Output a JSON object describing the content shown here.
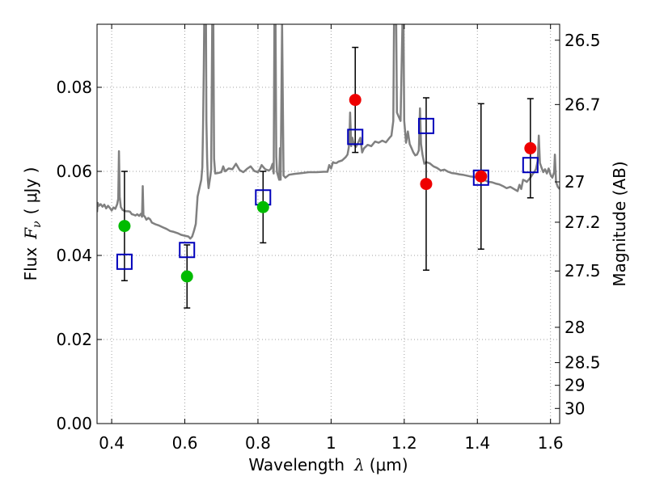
{
  "chart_data": {
    "type": "scatter",
    "xlabel": {
      "main": "Wavelength",
      "symbol": "λ",
      "unit": "(μm)"
    },
    "ylabel": {
      "main": "Flux",
      "symbol": "F",
      "sub": "ν",
      "unit": "( μJy )"
    },
    "ylabel_right": "Magnitude (AB)",
    "xlim": [
      0.36,
      1.625
    ],
    "ylim": [
      0.0,
      0.095
    ],
    "grid": true,
    "x_ticks": [
      0.4,
      0.6,
      0.8,
      1.0,
      1.2,
      1.4,
      1.6
    ],
    "x_tick_labels": [
      "0.4",
      "0.6",
      "0.8",
      "1",
      "1.2",
      "1.4",
      "1.6"
    ],
    "y_ticks": [
      0.0,
      0.02,
      0.04,
      0.06,
      0.08
    ],
    "y_tick_labels": [
      "0.00",
      "0.02",
      "0.04",
      "0.06",
      "0.08"
    ],
    "mag_ticks": [
      {
        "label": "26.5",
        "flux": 0.0912
      },
      {
        "label": "26.7",
        "flux": 0.0759
      },
      {
        "label": "27",
        "flux": 0.0575
      },
      {
        "label": "27.2",
        "flux": 0.0479
      },
      {
        "label": "27.5",
        "flux": 0.0363
      },
      {
        "label": "28",
        "flux": 0.0229
      },
      {
        "label": "28.5",
        "flux": 0.0145
      },
      {
        "label": "29",
        "flux": 0.0091
      },
      {
        "label": "30",
        "flux": 0.0036
      }
    ],
    "colors": {
      "spectrum": "#808080",
      "model": "#0000bb",
      "green": "#00bb00",
      "red": "#ee0000",
      "error": "#000000",
      "grid": "#a0a0a0"
    },
    "measured_points": [
      {
        "x": 0.435,
        "y": 0.047,
        "err": 0.013,
        "color": "green"
      },
      {
        "x": 0.606,
        "y": 0.035,
        "err": 0.0075,
        "color": "green"
      },
      {
        "x": 0.814,
        "y": 0.0515,
        "err": 0.0085,
        "color": "green"
      },
      {
        "x": 1.066,
        "y": 0.077,
        "err": 0.0125,
        "color": "red"
      },
      {
        "x": 1.26,
        "y": 0.057,
        "err": 0.0205,
        "color": "red"
      },
      {
        "x": 1.41,
        "y": 0.0588,
        "err": 0.0173,
        "color": "red"
      },
      {
        "x": 1.545,
        "y": 0.0655,
        "err": 0.0118,
        "color": "red"
      }
    ],
    "model_points": [
      {
        "x": 0.435,
        "y": 0.0385
      },
      {
        "x": 0.606,
        "y": 0.0413
      },
      {
        "x": 0.814,
        "y": 0.0538
      },
      {
        "x": 1.066,
        "y": 0.0682
      },
      {
        "x": 1.26,
        "y": 0.0708
      },
      {
        "x": 1.41,
        "y": 0.0585
      },
      {
        "x": 1.545,
        "y": 0.0615
      }
    ],
    "spectrum": [
      [
        0.36,
        0.0503
      ],
      [
        0.362,
        0.0525
      ],
      [
        0.365,
        0.0518
      ],
      [
        0.37,
        0.0522
      ],
      [
        0.375,
        0.0516
      ],
      [
        0.38,
        0.0521
      ],
      [
        0.385,
        0.0512
      ],
      [
        0.39,
        0.0518
      ],
      [
        0.395,
        0.0513
      ],
      [
        0.4,
        0.0507
      ],
      [
        0.405,
        0.0514
      ],
      [
        0.41,
        0.0511
      ],
      [
        0.415,
        0.0522
      ],
      [
        0.418,
        0.0535
      ],
      [
        0.42,
        0.0648
      ],
      [
        0.422,
        0.054
      ],
      [
        0.425,
        0.0515
      ],
      [
        0.43,
        0.0508
      ],
      [
        0.435,
        0.0506
      ],
      [
        0.44,
        0.0505
      ],
      [
        0.445,
        0.0505
      ],
      [
        0.45,
        0.0504
      ],
      [
        0.455,
        0.0498
      ],
      [
        0.46,
        0.0497
      ],
      [
        0.465,
        0.0495
      ],
      [
        0.47,
        0.0498
      ],
      [
        0.475,
        0.0494
      ],
      [
        0.48,
        0.0499
      ],
      [
        0.483,
        0.0492
      ],
      [
        0.485,
        0.0565
      ],
      [
        0.487,
        0.0495
      ],
      [
        0.49,
        0.0493
      ],
      [
        0.495,
        0.0485
      ],
      [
        0.5,
        0.0489
      ],
      [
        0.505,
        0.0486
      ],
      [
        0.51,
        0.0478
      ],
      [
        0.52,
        0.0474
      ],
      [
        0.53,
        0.0471
      ],
      [
        0.54,
        0.0467
      ],
      [
        0.55,
        0.0463
      ],
      [
        0.56,
        0.0458
      ],
      [
        0.57,
        0.0456
      ],
      [
        0.58,
        0.0453
      ],
      [
        0.59,
        0.0449
      ],
      [
        0.6,
        0.0447
      ],
      [
        0.61,
        0.0445
      ],
      [
        0.615,
        0.044
      ],
      [
        0.62,
        0.0445
      ],
      [
        0.625,
        0.0458
      ],
      [
        0.63,
        0.0475
      ],
      [
        0.635,
        0.054
      ],
      [
        0.64,
        0.056
      ],
      [
        0.645,
        0.058
      ],
      [
        0.648,
        0.061
      ],
      [
        0.65,
        0.071
      ],
      [
        0.652,
        0.085
      ],
      [
        0.653,
        0.095
      ],
      [
        0.658,
        0.095
      ],
      [
        0.659,
        0.072
      ],
      [
        0.661,
        0.063
      ],
      [
        0.663,
        0.058
      ],
      [
        0.665,
        0.056
      ],
      [
        0.67,
        0.059
      ],
      [
        0.672,
        0.0605
      ],
      [
        0.675,
        0.095
      ],
      [
        0.678,
        0.095
      ],
      [
        0.68,
        0.063
      ],
      [
        0.683,
        0.0595
      ],
      [
        0.69,
        0.0596
      ],
      [
        0.7,
        0.0598
      ],
      [
        0.705,
        0.0612
      ],
      [
        0.71,
        0.06
      ],
      [
        0.72,
        0.0607
      ],
      [
        0.73,
        0.0605
      ],
      [
        0.74,
        0.0618
      ],
      [
        0.75,
        0.0603
      ],
      [
        0.76,
        0.0598
      ],
      [
        0.77,
        0.0606
      ],
      [
        0.78,
        0.0612
      ],
      [
        0.79,
        0.0601
      ],
      [
        0.8,
        0.0598
      ],
      [
        0.805,
        0.0605
      ],
      [
        0.81,
        0.0615
      ],
      [
        0.815,
        0.061
      ],
      [
        0.82,
        0.0605
      ],
      [
        0.83,
        0.0602
      ],
      [
        0.835,
        0.0606
      ],
      [
        0.84,
        0.0618
      ],
      [
        0.843,
        0.0595
      ],
      [
        0.845,
        0.095
      ],
      [
        0.848,
        0.095
      ],
      [
        0.85,
        0.0635
      ],
      [
        0.852,
        0.0598
      ],
      [
        0.858,
        0.058
      ],
      [
        0.86,
        0.0655
      ],
      [
        0.862,
        0.058
      ],
      [
        0.866,
        0.095
      ],
      [
        0.87,
        0.059
      ],
      [
        0.875,
        0.0585
      ],
      [
        0.885,
        0.0592
      ],
      [
        0.9,
        0.0594
      ],
      [
        0.92,
        0.0596
      ],
      [
        0.94,
        0.0598
      ],
      [
        0.96,
        0.0598
      ],
      [
        0.98,
        0.0599
      ],
      [
        0.99,
        0.0599
      ],
      [
        0.995,
        0.0615
      ],
      [
        1.0,
        0.0607
      ],
      [
        1.005,
        0.0622
      ],
      [
        1.01,
        0.062
      ],
      [
        1.015,
        0.062
      ],
      [
        1.02,
        0.0623
      ],
      [
        1.03,
        0.0626
      ],
      [
        1.04,
        0.0634
      ],
      [
        1.045,
        0.064
      ],
      [
        1.048,
        0.0655
      ],
      [
        1.05,
        0.067
      ],
      [
        1.052,
        0.074
      ],
      [
        1.055,
        0.066
      ],
      [
        1.058,
        0.068
      ],
      [
        1.062,
        0.0665
      ],
      [
        1.068,
        0.0658
      ],
      [
        1.075,
        0.067
      ],
      [
        1.08,
        0.068
      ],
      [
        1.085,
        0.0645
      ],
      [
        1.09,
        0.0655
      ],
      [
        1.1,
        0.0663
      ],
      [
        1.11,
        0.066
      ],
      [
        1.12,
        0.0671
      ],
      [
        1.13,
        0.0668
      ],
      [
        1.14,
        0.0673
      ],
      [
        1.15,
        0.0669
      ],
      [
        1.16,
        0.068
      ],
      [
        1.165,
        0.0685
      ],
      [
        1.17,
        0.072
      ],
      [
        1.172,
        0.095
      ],
      [
        1.178,
        0.095
      ],
      [
        1.18,
        0.074
      ],
      [
        1.185,
        0.073
      ],
      [
        1.19,
        0.072
      ],
      [
        1.195,
        0.095
      ],
      [
        1.198,
        0.095
      ],
      [
        1.2,
        0.072
      ],
      [
        1.205,
        0.0668
      ],
      [
        1.21,
        0.0695
      ],
      [
        1.215,
        0.0665
      ],
      [
        1.22,
        0.0655
      ],
      [
        1.225,
        0.0645
      ],
      [
        1.23,
        0.0638
      ],
      [
        1.235,
        0.064
      ],
      [
        1.24,
        0.065
      ],
      [
        1.243,
        0.075
      ],
      [
        1.246,
        0.0665
      ],
      [
        1.25,
        0.064
      ],
      [
        1.255,
        0.0618
      ],
      [
        1.26,
        0.0622
      ],
      [
        1.27,
        0.0619
      ],
      [
        1.28,
        0.0612
      ],
      [
        1.29,
        0.0608
      ],
      [
        1.3,
        0.0602
      ],
      [
        1.31,
        0.0604
      ],
      [
        1.32,
        0.0599
      ],
      [
        1.33,
        0.0596
      ],
      [
        1.34,
        0.0595
      ],
      [
        1.35,
        0.0593
      ],
      [
        1.36,
        0.0592
      ],
      [
        1.37,
        0.059
      ],
      [
        1.38,
        0.0588
      ],
      [
        1.39,
        0.0587
      ],
      [
        1.4,
        0.0585
      ],
      [
        1.41,
        0.0583
      ],
      [
        1.42,
        0.0579
      ],
      [
        1.43,
        0.0575
      ],
      [
        1.44,
        0.0574
      ],
      [
        1.45,
        0.0571
      ],
      [
        1.46,
        0.0569
      ],
      [
        1.47,
        0.0565
      ],
      [
        1.48,
        0.056
      ],
      [
        1.49,
        0.0563
      ],
      [
        1.5,
        0.0558
      ],
      [
        1.51,
        0.0553
      ],
      [
        1.515,
        0.0568
      ],
      [
        1.52,
        0.0558
      ],
      [
        1.525,
        0.058
      ],
      [
        1.53,
        0.0578
      ],
      [
        1.535,
        0.0575
      ],
      [
        1.54,
        0.058
      ],
      [
        1.545,
        0.0585
      ],
      [
        1.55,
        0.0592
      ],
      [
        1.555,
        0.0598
      ],
      [
        1.56,
        0.0605
      ],
      [
        1.565,
        0.0625
      ],
      [
        1.568,
        0.0685
      ],
      [
        1.571,
        0.062
      ],
      [
        1.575,
        0.061
      ],
      [
        1.58,
        0.0598
      ],
      [
        1.585,
        0.0605
      ],
      [
        1.59,
        0.0595
      ],
      [
        1.595,
        0.0607
      ],
      [
        1.6,
        0.0592
      ],
      [
        1.605,
        0.0585
      ],
      [
        1.61,
        0.0598
      ],
      [
        1.612,
        0.064
      ],
      [
        1.615,
        0.0575
      ],
      [
        1.62,
        0.0563
      ],
      [
        1.625,
        0.0558
      ]
    ]
  }
}
